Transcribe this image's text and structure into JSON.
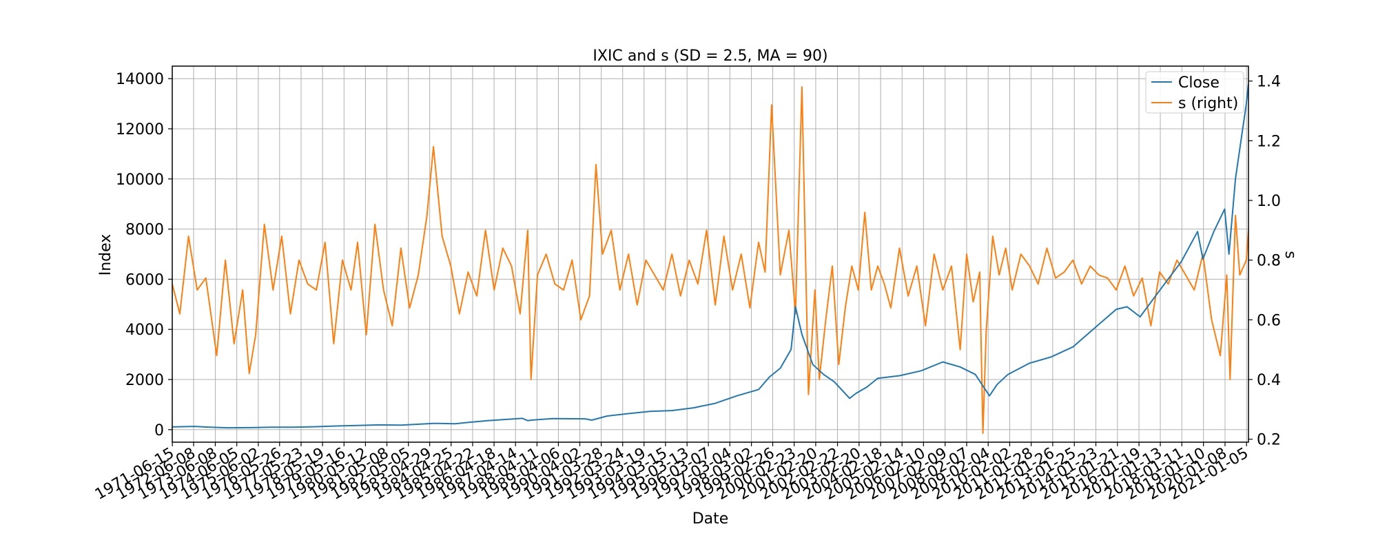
{
  "chart_data": {
    "type": "line",
    "title": "IXIC and s (SD = 2.5, MA = 90)",
    "xlabel": "Date",
    "ylabel": "Index",
    "y2label": "s",
    "grid": true,
    "legend_position": "top-right",
    "ylim": [
      -500,
      14500
    ],
    "y2lim": [
      0.19,
      1.45
    ],
    "yticks": [
      0,
      2000,
      4000,
      6000,
      8000,
      10000,
      12000,
      14000
    ],
    "yticks_right": [
      0.2,
      0.4,
      0.6,
      0.8,
      1.0,
      1.2,
      1.4
    ],
    "xlim": [
      1971.45,
      2021.1
    ],
    "xticks": [
      "1971-06-15",
      "1972-06-08",
      "1973-06-08",
      "1974-06-05",
      "1975-06-02",
      "1976-05-26",
      "1977-05-23",
      "1978-05-19",
      "1979-05-16",
      "1980-05-12",
      "1981-05-08",
      "1982-05-05",
      "1983-04-29",
      "1984-04-25",
      "1985-04-22",
      "1986-04-18",
      "1987-04-14",
      "1988-04-11",
      "1989-04-06",
      "1990-04-02",
      "1991-03-28",
      "1992-03-24",
      "1993-03-19",
      "1994-03-15",
      "1995-03-13",
      "1996-03-07",
      "1997-03-04",
      "1998-03-02",
      "1999-02-26",
      "2000-02-23",
      "2001-02-20",
      "2002-02-22",
      "2003-02-20",
      "2004-02-18",
      "2005-02-14",
      "2006-02-10",
      "2007-02-09",
      "2008-02-07",
      "2009-02-04",
      "2010-02-02",
      "2011-01-28",
      "2012-01-26",
      "2013-01-25",
      "2014-01-23",
      "2015-01-21",
      "2016-01-19",
      "2017-01-13",
      "2018-01-11",
      "2019-01-10",
      "2020-01-08",
      "2021-01-05"
    ],
    "series": [
      {
        "name": "Close",
        "axis": "left",
        "color": "#1f77b4",
        "x": [
          1971.45,
          1972.5,
          1973.0,
          1974.0,
          1975.0,
          1976.0,
          1977.0,
          1978.0,
          1979.0,
          1980.0,
          1981.0,
          1982.0,
          1983.5,
          1984.5,
          1985.0,
          1986.0,
          1987.6,
          1987.85,
          1988.0,
          1989.0,
          1990.5,
          1990.8,
          1991.5,
          1992.5,
          1993.5,
          1994.5,
          1995.5,
          1996.5,
          1997.5,
          1998.5,
          1999.0,
          1999.5,
          2000.0,
          2000.2,
          2000.5,
          2001.0,
          2001.5,
          2002.0,
          2002.7,
          2003.0,
          2003.5,
          2004.0,
          2005.0,
          2006.0,
          2007.0,
          2007.8,
          2008.5,
          2009.15,
          2009.5,
          2010.0,
          2011.0,
          2012.0,
          2013.0,
          2014.0,
          2015.0,
          2015.5,
          2016.1,
          2017.0,
          2018.0,
          2018.75,
          2019.0,
          2019.5,
          2020.0,
          2020.2,
          2020.5,
          2021.0,
          2021.1
        ],
        "values": [
          110,
          130,
          105,
          75,
          80,
          95,
          100,
          115,
          145,
          165,
          190,
          180,
          250,
          235,
          280,
          360,
          450,
          360,
          380,
          440,
          430,
          380,
          540,
          640,
          730,
          760,
          870,
          1050,
          1350,
          1600,
          2100,
          2450,
          3200,
          4900,
          3800,
          2600,
          2200,
          1900,
          1250,
          1450,
          1700,
          2050,
          2150,
          2350,
          2700,
          2500,
          2200,
          1350,
          1800,
          2200,
          2650,
          2900,
          3300,
          4050,
          4800,
          4900,
          4500,
          5550,
          6700,
          7900,
          6800,
          7900,
          8800,
          7000,
          10000,
          13000,
          13800
        ]
      },
      {
        "name": "s (right)",
        "axis": "right",
        "color": "#ff7f0e",
        "x": [
          1971.45,
          1971.8,
          1972.2,
          1972.6,
          1973.0,
          1973.5,
          1973.9,
          1974.3,
          1974.7,
          1975.0,
          1975.3,
          1975.7,
          1976.1,
          1976.5,
          1976.9,
          1977.3,
          1977.7,
          1978.1,
          1978.5,
          1978.9,
          1979.3,
          1979.7,
          1980.0,
          1980.4,
          1980.8,
          1981.2,
          1981.6,
          1982.0,
          1982.4,
          1982.8,
          1983.2,
          1983.5,
          1983.9,
          1984.3,
          1984.7,
          1985.1,
          1985.5,
          1985.9,
          1986.3,
          1986.7,
          1987.1,
          1987.5,
          1987.85,
          1988.0,
          1988.3,
          1988.7,
          1989.1,
          1989.5,
          1989.9,
          1990.3,
          1990.7,
          1991.0,
          1991.3,
          1991.7,
          1992.1,
          1992.5,
          1992.9,
          1993.3,
          1993.7,
          1994.1,
          1994.5,
          1994.9,
          1995.3,
          1995.7,
          1996.1,
          1996.5,
          1996.9,
          1997.3,
          1997.7,
          1998.1,
          1998.5,
          1998.8,
          1999.1,
          1999.5,
          1999.9,
          2000.2,
          2000.5,
          2000.8,
          2001.1,
          2001.3,
          2001.6,
          2001.9,
          2002.2,
          2002.5,
          2002.8,
          2003.1,
          2003.4,
          2003.7,
          2004.0,
          2004.3,
          2004.6,
          2005.0,
          2005.4,
          2005.8,
          2006.2,
          2006.6,
          2007.0,
          2007.4,
          2007.8,
          2008.1,
          2008.4,
          2008.7,
          2008.85,
          2009.0,
          2009.3,
          2009.6,
          2009.9,
          2010.2,
          2010.6,
          2011.0,
          2011.4,
          2011.8,
          2012.2,
          2012.6,
          2013.0,
          2013.4,
          2013.8,
          2014.2,
          2014.6,
          2015.0,
          2015.4,
          2015.8,
          2016.2,
          2016.6,
          2017.0,
          2017.4,
          2017.8,
          2018.2,
          2018.6,
          2019.0,
          2019.4,
          2019.8,
          2020.1,
          2020.25,
          2020.5,
          2020.7,
          2021.0,
          2021.1
        ],
        "values": [
          0.72,
          0.62,
          0.88,
          0.7,
          0.74,
          0.48,
          0.8,
          0.52,
          0.7,
          0.42,
          0.55,
          0.92,
          0.7,
          0.88,
          0.62,
          0.8,
          0.72,
          0.7,
          0.86,
          0.52,
          0.8,
          0.7,
          0.86,
          0.55,
          0.92,
          0.7,
          0.58,
          0.84,
          0.64,
          0.75,
          0.95,
          1.18,
          0.88,
          0.78,
          0.62,
          0.76,
          0.68,
          0.9,
          0.7,
          0.84,
          0.78,
          0.62,
          0.9,
          0.4,
          0.75,
          0.82,
          0.72,
          0.7,
          0.8,
          0.6,
          0.68,
          1.12,
          0.82,
          0.9,
          0.7,
          0.82,
          0.65,
          0.8,
          0.75,
          0.7,
          0.82,
          0.68,
          0.8,
          0.72,
          0.9,
          0.65,
          0.88,
          0.7,
          0.82,
          0.64,
          0.86,
          0.76,
          1.32,
          0.75,
          0.9,
          0.62,
          1.38,
          0.35,
          0.7,
          0.4,
          0.6,
          0.78,
          0.45,
          0.64,
          0.78,
          0.7,
          0.96,
          0.7,
          0.78,
          0.72,
          0.64,
          0.84,
          0.68,
          0.78,
          0.58,
          0.82,
          0.7,
          0.78,
          0.5,
          0.82,
          0.66,
          0.76,
          0.22,
          0.56,
          0.88,
          0.75,
          0.84,
          0.7,
          0.82,
          0.78,
          0.72,
          0.84,
          0.74,
          0.76,
          0.8,
          0.72,
          0.78,
          0.75,
          0.74,
          0.7,
          0.78,
          0.68,
          0.74,
          0.58,
          0.76,
          0.72,
          0.8,
          0.75,
          0.7,
          0.82,
          0.6,
          0.48,
          0.75,
          0.4,
          0.95,
          0.75,
          0.8,
          0.9
        ]
      }
    ]
  }
}
